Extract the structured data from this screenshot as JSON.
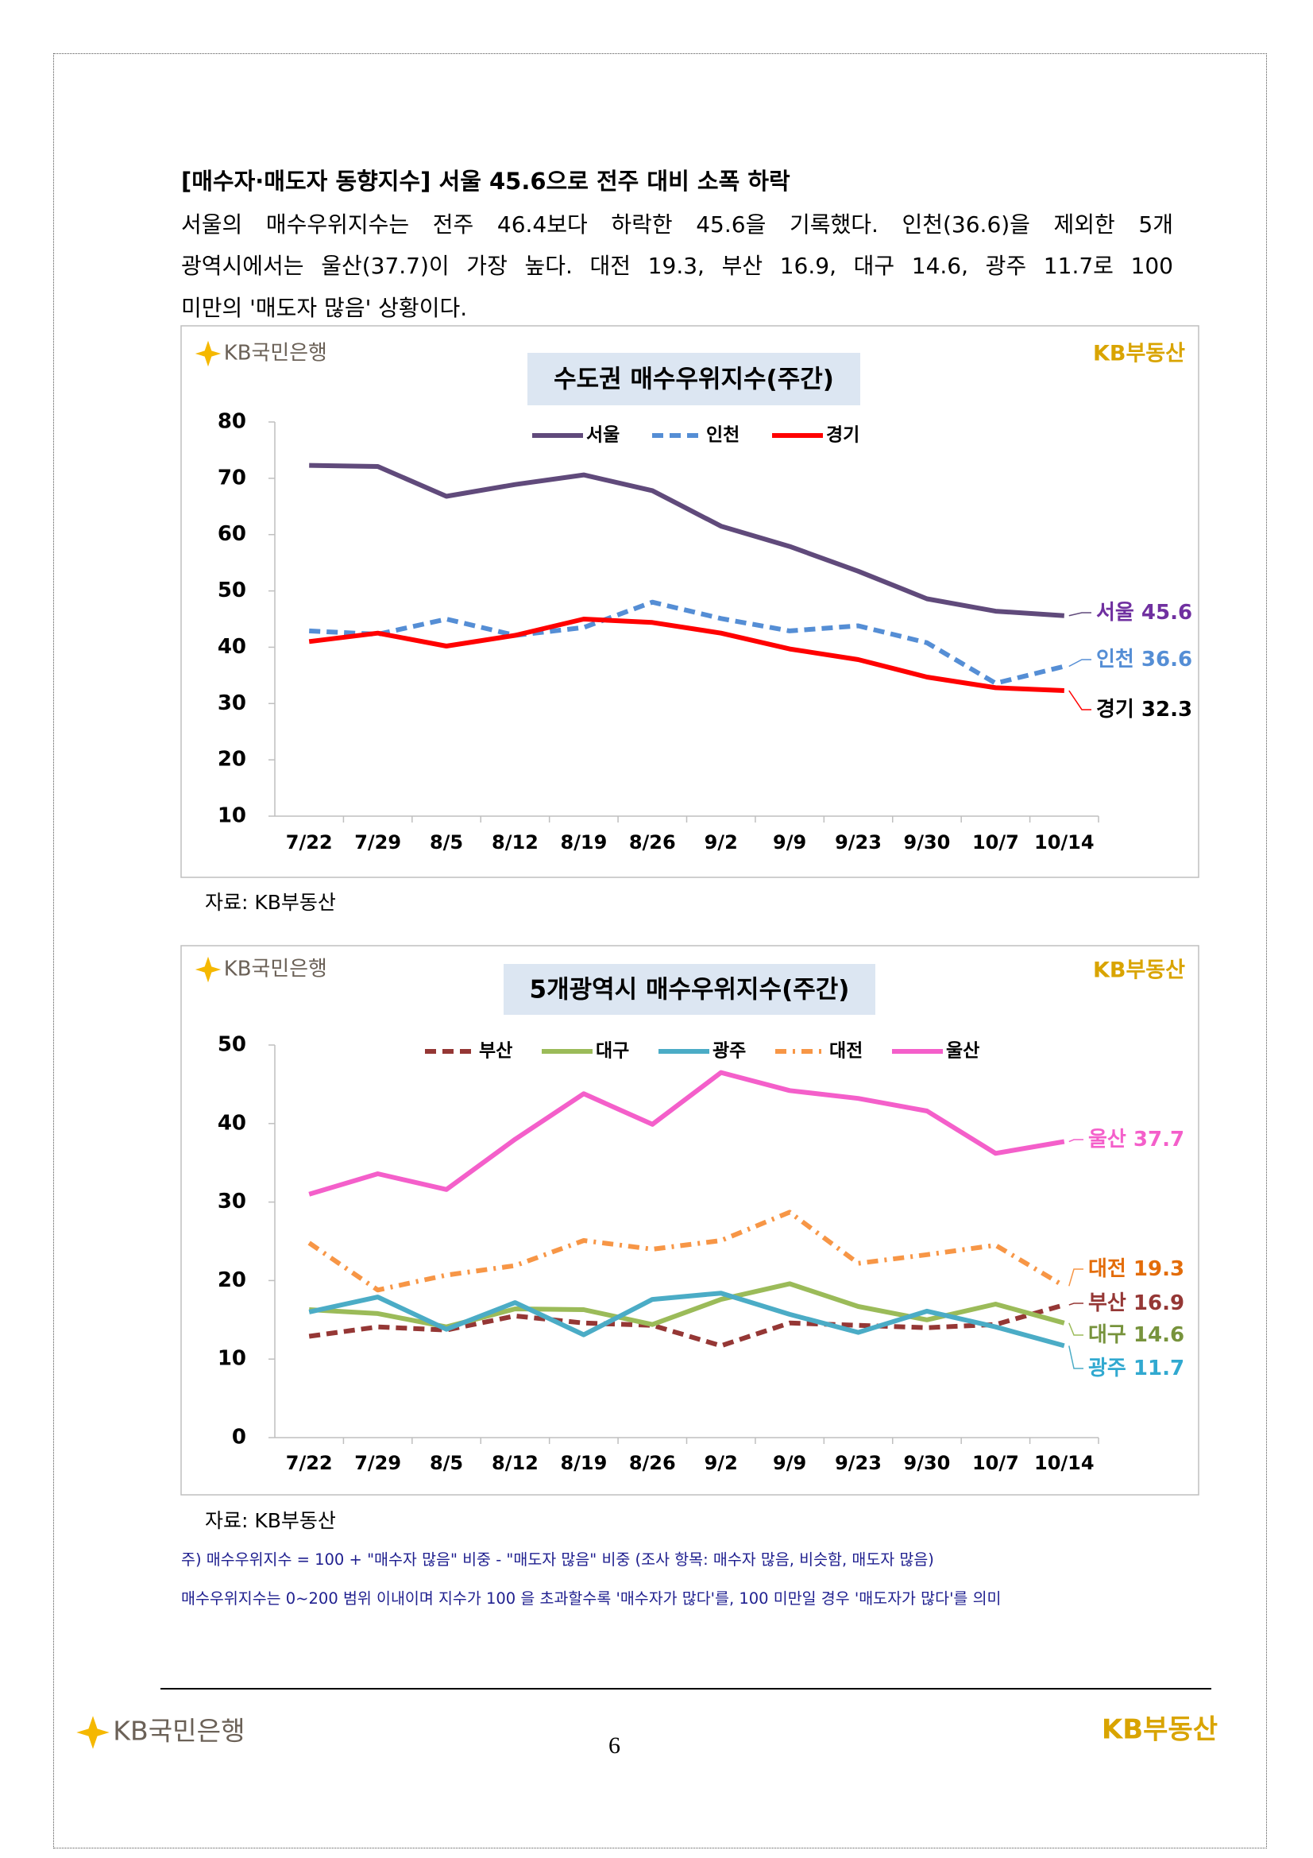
{
  "document": {
    "heading": "[매수자·매도자 동향지수] 서울 45.6으로 전주 대비 소폭 하락",
    "paragraph": [
      "서울의 매수우위지수는 전주 46.4보다 하락한 45.6을 기록했다. 인천(36.6)을 제외한 5개",
      "광역시에서는 울산(37.7)이 가장 높다. 대전 19.3, 부산 16.9, 대구 14.6, 광주 11.7로 100",
      "미만의 '매도자 많음' 상황이다."
    ],
    "sources": [
      "자료: KB부동산",
      "자료: KB부동산"
    ],
    "notes": [
      "주) 매수우위지수 = 100 + \"매수자 많음\" 비중 - \"매도자 많음\" 비중  (조사 항목: 매수자 많음, 비슷함, 매도자 많음)",
      "매수우위지수는 0~200 범위 이내이며 지수가 100 을 초과할수록 '매수자가 많다'를, 100 미만일 경우 '매도자가 많다'를 의미"
    ],
    "logo_bank": "KB국민은행",
    "logo_realestate": "KB부동산",
    "page_number": "6"
  },
  "chart_data": [
    {
      "type": "line",
      "title": "수도권 매수우위지수(주간)",
      "categories": [
        "7/22",
        "7/29",
        "8/5",
        "8/12",
        "8/19",
        "8/26",
        "9/2",
        "9/9",
        "9/23",
        "9/30",
        "10/7",
        "10/14"
      ],
      "ylim": [
        10,
        80
      ],
      "yticks": [
        10,
        20,
        30,
        40,
        50,
        60,
        70,
        80
      ],
      "grid": false,
      "legend": "top",
      "series": [
        {
          "name": "서울",
          "color": "#604a7b",
          "dash": "solid",
          "label_color": "#7030a0",
          "values": [
            72.3,
            72.1,
            66.8,
            68.9,
            70.6,
            67.8,
            61.5,
            57.9,
            53.5,
            48.6,
            46.4,
            45.6
          ]
        },
        {
          "name": "인천",
          "color": "#558ed5",
          "dash": "dash",
          "label_color": "#558ed5",
          "values": [
            42.9,
            42.3,
            45.0,
            42.1,
            43.5,
            48.0,
            45.1,
            42.9,
            43.8,
            40.8,
            33.6,
            36.6
          ]
        },
        {
          "name": "경기",
          "color": "#ff0000",
          "dash": "solid",
          "label_color": "#000000",
          "values": [
            41.0,
            42.5,
            40.2,
            42.1,
            45.0,
            44.4,
            42.5,
            39.7,
            37.8,
            34.7,
            32.8,
            32.3
          ]
        }
      ]
    },
    {
      "type": "line",
      "title": "5개광역시 매수우위지수(주간)",
      "categories": [
        "7/22",
        "7/29",
        "8/5",
        "8/12",
        "8/19",
        "8/26",
        "9/2",
        "9/9",
        "9/23",
        "9/30",
        "10/7",
        "10/14"
      ],
      "ylim": [
        0,
        50
      ],
      "yticks": [
        0,
        10,
        20,
        30,
        40,
        50
      ],
      "grid": false,
      "legend": "top",
      "series": [
        {
          "name": "부산",
          "color": "#953735",
          "dash": "dash",
          "label_color": "#953735",
          "values": [
            12.9,
            14.1,
            13.7,
            15.5,
            14.6,
            14.3,
            11.7,
            14.6,
            14.3,
            14.0,
            14.4,
            16.9
          ]
        },
        {
          "name": "대구",
          "color": "#9bbb59",
          "dash": "solid",
          "label_color": "#77933c",
          "values": [
            16.3,
            15.8,
            14.1,
            16.4,
            16.3,
            14.4,
            17.6,
            19.6,
            16.7,
            15.0,
            17.0,
            14.6
          ]
        },
        {
          "name": "광주",
          "color": "#4bacc6",
          "dash": "solid",
          "label_color": "#31a9d0",
          "values": [
            16.0,
            17.9,
            13.8,
            17.2,
            13.1,
            17.6,
            18.4,
            15.7,
            13.4,
            16.1,
            14.1,
            11.7
          ]
        },
        {
          "name": "대전",
          "color": "#f79646",
          "dash": "dashdot",
          "label_color": "#e36c09",
          "values": [
            24.8,
            18.8,
            20.7,
            21.9,
            25.1,
            24.0,
            25.1,
            28.7,
            22.2,
            23.3,
            24.5,
            19.3
          ]
        },
        {
          "name": "울산",
          "color": "#f45fca",
          "dash": "solid",
          "label_color": "#f45fca",
          "values": [
            31.0,
            33.6,
            31.6,
            38.0,
            43.8,
            39.9,
            46.5,
            44.2,
            43.2,
            41.6,
            36.2,
            37.7
          ]
        }
      ]
    }
  ]
}
